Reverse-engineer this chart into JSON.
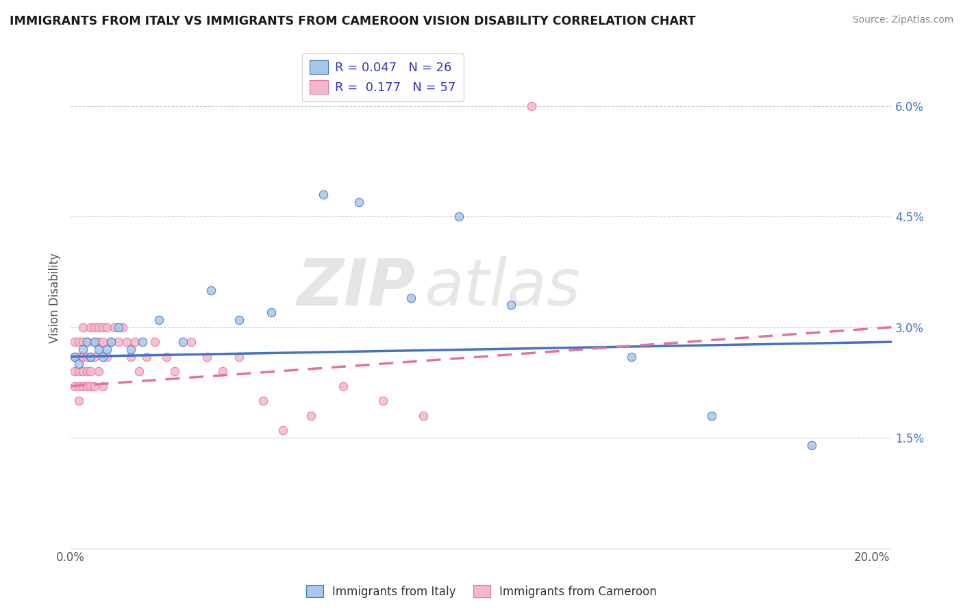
{
  "title": "IMMIGRANTS FROM ITALY VS IMMIGRANTS FROM CAMEROON VISION DISABILITY CORRELATION CHART",
  "source": "Source: ZipAtlas.com",
  "ylabel": "Vision Disability",
  "xlim": [
    0.0,
    0.205
  ],
  "ylim": [
    0.0,
    0.068
  ],
  "r_italy": 0.047,
  "n_italy": 26,
  "r_cameroon": 0.177,
  "n_cameroon": 57,
  "italy_color": "#a8c8e8",
  "cameroon_color": "#f4b8cc",
  "italy_line_color": "#4472c4",
  "cameroon_line_color": "#e8709a",
  "watermark_zip": "ZIP",
  "watermark_atlas": "atlas",
  "italy_scatter_x": [
    0.001,
    0.002,
    0.003,
    0.004,
    0.005,
    0.006,
    0.007,
    0.008,
    0.009,
    0.01,
    0.012,
    0.015,
    0.018,
    0.022,
    0.028,
    0.035,
    0.042,
    0.05,
    0.063,
    0.072,
    0.085,
    0.097,
    0.11,
    0.14,
    0.16,
    0.185
  ],
  "italy_scatter_y": [
    0.026,
    0.025,
    0.027,
    0.028,
    0.026,
    0.028,
    0.027,
    0.026,
    0.027,
    0.028,
    0.03,
    0.027,
    0.028,
    0.031,
    0.028,
    0.035,
    0.031,
    0.032,
    0.048,
    0.047,
    0.034,
    0.045,
    0.033,
    0.026,
    0.018,
    0.014
  ],
  "cameroon_scatter_x": [
    0.001,
    0.001,
    0.001,
    0.001,
    0.002,
    0.002,
    0.002,
    0.002,
    0.002,
    0.003,
    0.003,
    0.003,
    0.003,
    0.003,
    0.004,
    0.004,
    0.004,
    0.004,
    0.005,
    0.005,
    0.005,
    0.005,
    0.006,
    0.006,
    0.006,
    0.006,
    0.007,
    0.007,
    0.007,
    0.008,
    0.008,
    0.008,
    0.009,
    0.009,
    0.01,
    0.011,
    0.012,
    0.013,
    0.014,
    0.015,
    0.016,
    0.017,
    0.019,
    0.021,
    0.024,
    0.026,
    0.03,
    0.034,
    0.038,
    0.042,
    0.048,
    0.053,
    0.06,
    0.068,
    0.078,
    0.088,
    0.115
  ],
  "cameroon_scatter_y": [
    0.026,
    0.024,
    0.022,
    0.028,
    0.026,
    0.024,
    0.022,
    0.028,
    0.02,
    0.028,
    0.026,
    0.024,
    0.03,
    0.022,
    0.026,
    0.022,
    0.028,
    0.024,
    0.03,
    0.026,
    0.024,
    0.022,
    0.03,
    0.028,
    0.026,
    0.022,
    0.03,
    0.028,
    0.024,
    0.03,
    0.028,
    0.022,
    0.03,
    0.026,
    0.028,
    0.03,
    0.028,
    0.03,
    0.028,
    0.026,
    0.028,
    0.024,
    0.026,
    0.028,
    0.026,
    0.024,
    0.028,
    0.026,
    0.024,
    0.026,
    0.02,
    0.016,
    0.018,
    0.022,
    0.02,
    0.018,
    0.06
  ],
  "italy_line_x0": 0.0,
  "italy_line_y0": 0.026,
  "italy_line_x1": 0.205,
  "italy_line_y1": 0.028,
  "cameroon_line_x0": 0.0,
  "cameroon_line_y0": 0.022,
  "cameroon_line_x1": 0.205,
  "cameroon_line_y1": 0.03
}
